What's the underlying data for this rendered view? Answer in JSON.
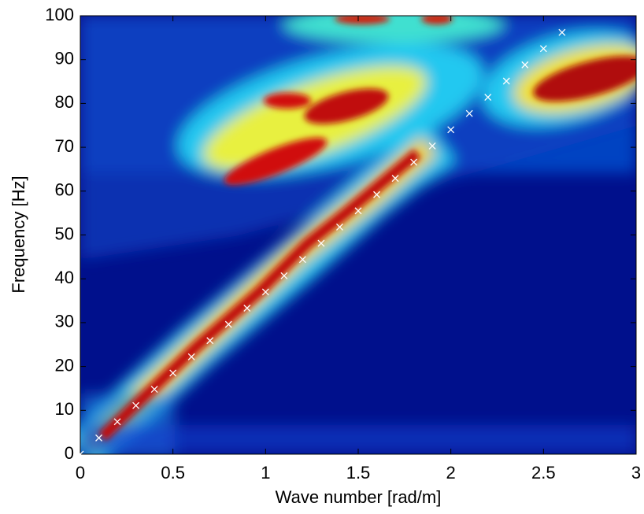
{
  "chart_data": {
    "type": "scatter",
    "xlabel": "Wave number [rad/m]",
    "ylabel": "Frequency [Hz]",
    "x": [
      0,
      0.1,
      0.2,
      0.3,
      0.4,
      0.5,
      0.6,
      0.7,
      0.8,
      0.9,
      1,
      1.1,
      1.2,
      1.3,
      1.4,
      1.5,
      1.6,
      1.7,
      1.8,
      1.9,
      2,
      2.1,
      2.2,
      2.3,
      2.4,
      2.5,
      2.6
    ],
    "series": [
      {
        "color": "#ffffff",
        "marker": "x",
        "values": [
          0,
          3.7,
          7.4,
          11.1,
          14.8,
          18.5,
          22.2,
          25.9,
          29.6,
          33.3,
          37,
          40.7,
          44.4,
          48.1,
          51.8,
          55.5,
          59.2,
          62.9,
          66.6,
          70.3,
          74,
          77.7,
          81.4,
          85.1,
          88.8,
          92.5,
          96.2
        ]
      }
    ],
    "xlim": [
      0,
      3
    ],
    "ylim": [
      0,
      100
    ],
    "xticks": [
      0,
      0.5,
      1,
      1.5,
      2,
      2.5,
      3
    ],
    "yticks": [
      0,
      10,
      20,
      30,
      40,
      50,
      60,
      70,
      80,
      90,
      100
    ]
  }
}
